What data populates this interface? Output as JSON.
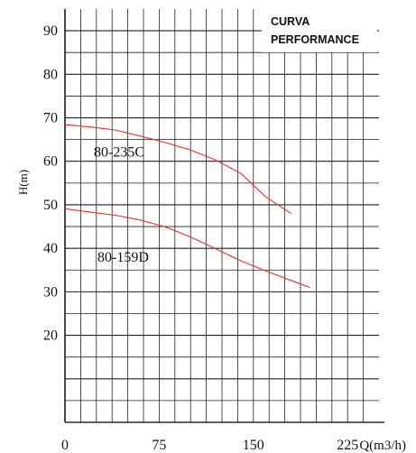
{
  "chart_data": {
    "type": "line",
    "title_lines": [
      "CURVA",
      "PERFORMANCE"
    ],
    "xlabel": "Q(m3/h)",
    "ylabel": "H(m)",
    "x_ticks": [
      "0",
      "75",
      "150",
      "225"
    ],
    "y_ticks": [
      "90",
      "80",
      "70",
      "60",
      "50",
      "40",
      "30",
      "20"
    ],
    "xlim": [
      0,
      250
    ],
    "ylim": [
      0,
      95
    ],
    "grid": true,
    "line_color": "#ff2a2a",
    "series": [
      {
        "name": "80-235C",
        "x": [
          0,
          20,
          40,
          60,
          80,
          100,
          120,
          140,
          160,
          170,
          180
        ],
        "y": [
          68.4,
          67.9,
          67.2,
          65.8,
          64.3,
          62.6,
          60.3,
          57.2,
          51.8,
          49.9,
          48.0
        ]
      },
      {
        "name": "80-159D",
        "x": [
          0,
          20,
          40,
          60,
          80,
          100,
          120,
          140,
          160,
          180,
          195
        ],
        "y": [
          49.1,
          48.3,
          47.6,
          46.5,
          44.9,
          42.6,
          39.9,
          37.1,
          34.8,
          32.6,
          31.0
        ]
      }
    ]
  }
}
